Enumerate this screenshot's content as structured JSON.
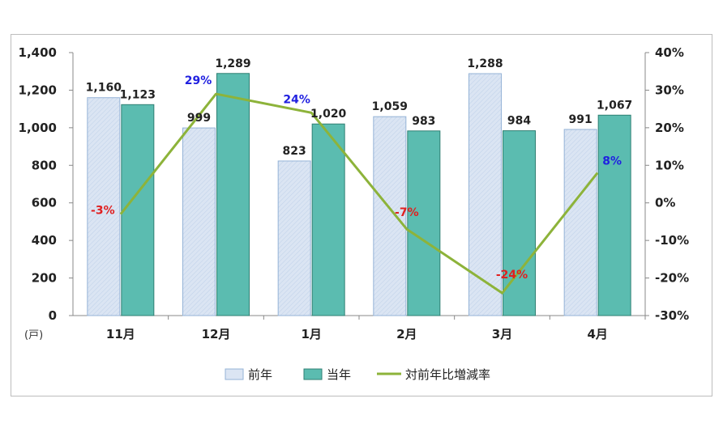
{
  "chart_data": {
    "type": "bar",
    "unit_label": "(戸)",
    "categories": [
      "11月",
      "12月",
      "1月",
      "2月",
      "3月",
      "4月"
    ],
    "series": [
      {
        "name": "前年",
        "kind": "bar",
        "values": [
          1160,
          999,
          823,
          1059,
          1288,
          991
        ],
        "color": "#dbe5f3",
        "stroke": "#95b3d7"
      },
      {
        "name": "当年",
        "kind": "bar",
        "values": [
          1123,
          1289,
          1020,
          983,
          984,
          1067
        ],
        "color": "#5bbcb0",
        "stroke": "#2f7f73"
      },
      {
        "name": "対前年比増減率",
        "kind": "line",
        "axis": "right",
        "values": [
          -3,
          29,
          24,
          -7,
          -24,
          8
        ],
        "labels": [
          "-3%",
          "29%",
          "24%",
          "-7%",
          "-24%",
          "8%"
        ],
        "color": "#8db33a"
      }
    ],
    "left_axis": {
      "ylim": [
        0,
        1400
      ],
      "ticks": [
        "0",
        "200",
        "400",
        "600",
        "800",
        "1,000",
        "1,200",
        "1,400"
      ]
    },
    "right_axis": {
      "ylim": [
        -30,
        40
      ],
      "ticks": [
        "-30%",
        "-20%",
        "-10%",
        "0%",
        "10%",
        "20%",
        "30%",
        "40%"
      ]
    },
    "data_labels": {
      "prev": [
        "1,160",
        "999",
        "823",
        "1,059",
        "1,288",
        "991"
      ],
      "curr": [
        "1,123",
        "1,289",
        "1,020",
        "983",
        "984",
        "1,067"
      ]
    },
    "colors": {
      "positive_rate": "#2020e0",
      "negative_rate": "#e02020"
    },
    "legend_position": "bottom",
    "grid": false
  }
}
